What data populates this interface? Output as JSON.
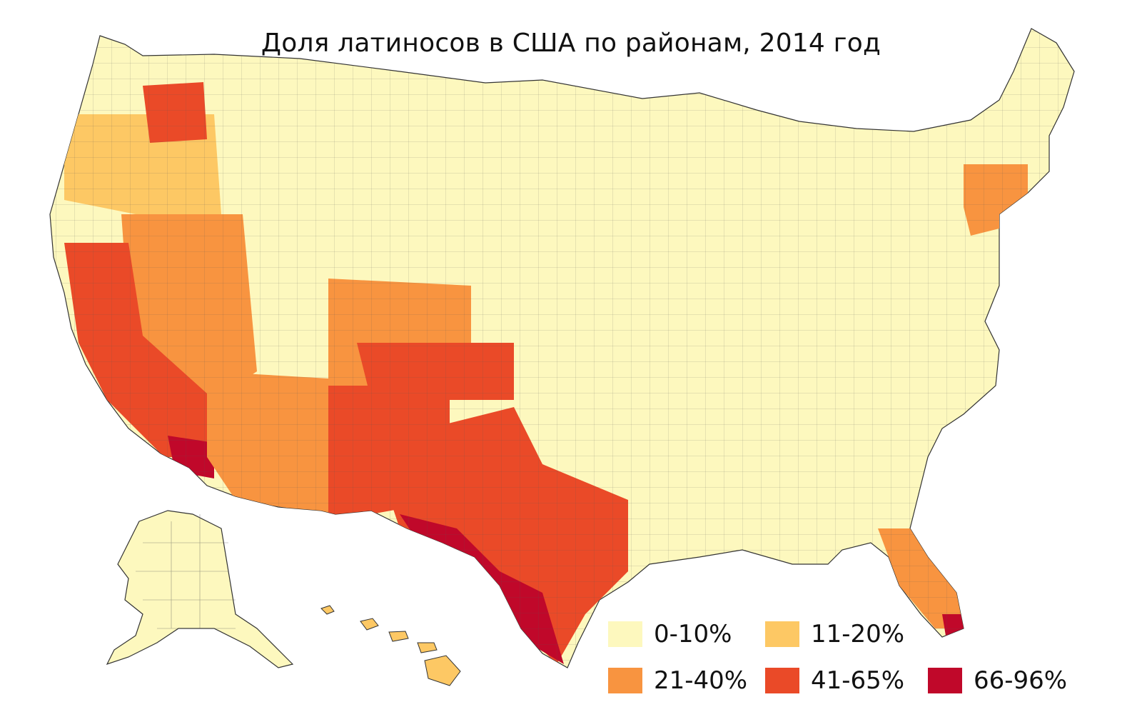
{
  "map": {
    "title": "Доля латиносов в США по районам, 2014 год",
    "legend": [
      {
        "label": "0-10%",
        "color": "#fdf8be"
      },
      {
        "label": "11-20%",
        "color": "#fdc864"
      },
      {
        "label": "21-40%",
        "color": "#f89440"
      },
      {
        "label": "41-65%",
        "color": "#ea4a28"
      },
      {
        "label": "66-96%",
        "color": "#c0082a"
      }
    ],
    "regions": [
      {
        "name": "conus-base",
        "class": 0
      },
      {
        "name": "pacific-northwest",
        "class": 1
      },
      {
        "name": "washington-interior",
        "class": 3
      },
      {
        "name": "idaho-nevada-utah",
        "class": 2
      },
      {
        "name": "california",
        "class": 3
      },
      {
        "name": "southern-california",
        "class": 4
      },
      {
        "name": "arizona",
        "class": 2
      },
      {
        "name": "new-mexico",
        "class": 3
      },
      {
        "name": "texas",
        "class": 3
      },
      {
        "name": "south-texas",
        "class": 4
      },
      {
        "name": "colorado-west",
        "class": 2
      },
      {
        "name": "kansas-southwest",
        "class": 3
      },
      {
        "name": "florida",
        "class": 2
      },
      {
        "name": "south-florida",
        "class": 4
      },
      {
        "name": "northeast-urban",
        "class": 2
      },
      {
        "name": "alaska",
        "class": 0
      },
      {
        "name": "hawaii",
        "class": 1
      }
    ]
  }
}
